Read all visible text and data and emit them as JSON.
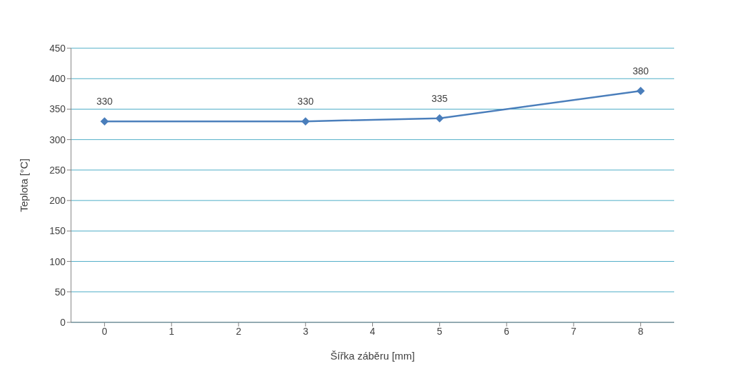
{
  "chart_data": {
    "type": "line",
    "xlabel": "Šířka záběru [mm]",
    "ylabel": "Teplota [°C]",
    "x": [
      0,
      3,
      5,
      8
    ],
    "series": [
      {
        "color": "#4a7ebb",
        "values": [
          330,
          330,
          335,
          380
        ]
      }
    ],
    "xlim": [
      -0.5,
      8.5
    ],
    "xticks": [
      0,
      1,
      2,
      3,
      4,
      5,
      6,
      7,
      8
    ],
    "ylim": [
      0,
      450
    ],
    "yticks": [
      0,
      50,
      100,
      150,
      200,
      250,
      300,
      350,
      400,
      450
    ],
    "grid": "y",
    "marker": "diamond",
    "line_style": "solid",
    "data_labels": true,
    "legend": false
  }
}
